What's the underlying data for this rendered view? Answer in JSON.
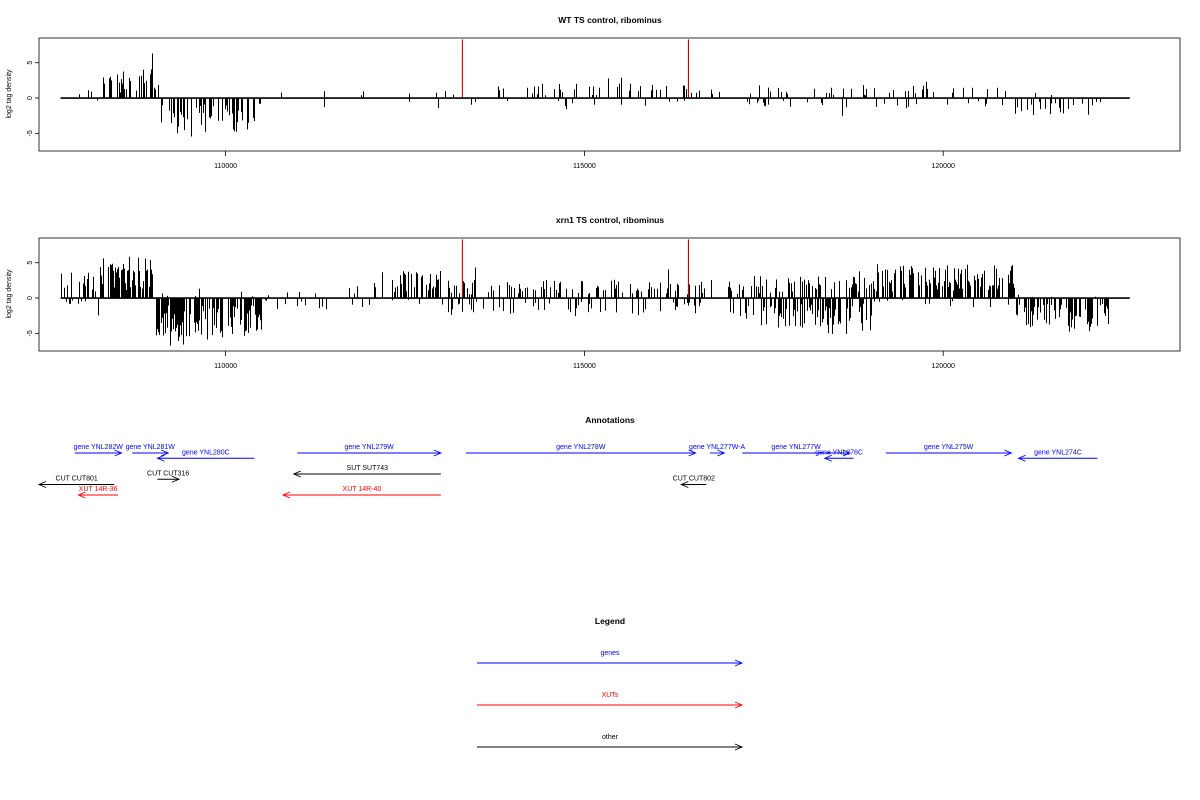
{
  "chart_data": [
    {
      "type": "bar",
      "title": "WT TS control, ribominus",
      "xlabel": "",
      "ylabel": "log2 tag density",
      "xlim": [
        107400,
        123300
      ],
      "ylim": [
        -7.5,
        8.5
      ],
      "x_ticks": [
        110000,
        115000,
        120000
      ],
      "x_tick_labels": [
        "110000",
        "115000",
        "120000"
      ],
      "y_ticks": [
        -5,
        0,
        5
      ],
      "y_tick_labels": [
        "-5",
        "0",
        "5"
      ],
      "baseline": {
        "x_start": 107700,
        "x_end": 122600,
        "y": 0,
        "color": "#000000"
      },
      "markers": [
        {
          "x": 113300,
          "y": 8.3,
          "color": "#cc0000"
        },
        {
          "x": 116450,
          "y": 8.3,
          "color": "#cc0000"
        }
      ],
      "signal": {
        "seed": 11,
        "color": "#000000",
        "segments": [
          {
            "x0": 107700,
            "x1": 108250,
            "strand": "plus",
            "mean": 0.8,
            "max": 2.2,
            "density": 0.06
          },
          {
            "x0": 107700,
            "x1": 108250,
            "strand": "minus",
            "mean": 0.5,
            "max": 1.5,
            "density": 0.03
          },
          {
            "x0": 108250,
            "x1": 109100,
            "strand": "plus",
            "mean": 2.2,
            "max": 8.0,
            "density": 0.45
          },
          {
            "x0": 109100,
            "x1": 110400,
            "strand": "minus",
            "mean": 2.6,
            "max": 5.6,
            "density": 0.45
          },
          {
            "x0": 109100,
            "x1": 110400,
            "strand": "plus",
            "mean": 0.4,
            "max": 1.0,
            "density": 0.03
          },
          {
            "x0": 110400,
            "x1": 113000,
            "strand": "plus",
            "mean": 0.7,
            "max": 1.8,
            "density": 0.04
          },
          {
            "x0": 110400,
            "x1": 113000,
            "strand": "minus",
            "mean": 0.8,
            "max": 2.4,
            "density": 0.05
          },
          {
            "x0": 113000,
            "x1": 116500,
            "strand": "plus",
            "mean": 1.1,
            "max": 3.0,
            "density": 0.14
          },
          {
            "x0": 113000,
            "x1": 116500,
            "strand": "minus",
            "mean": 0.7,
            "max": 1.6,
            "density": 0.06
          },
          {
            "x0": 116500,
            "x1": 117200,
            "strand": "plus",
            "mean": 0.8,
            "max": 2.0,
            "density": 0.05
          },
          {
            "x0": 117200,
            "x1": 121000,
            "strand": "plus",
            "mean": 1.0,
            "max": 3.0,
            "density": 0.12
          },
          {
            "x0": 117200,
            "x1": 121000,
            "strand": "minus",
            "mean": 0.9,
            "max": 2.6,
            "density": 0.09
          },
          {
            "x0": 121000,
            "x1": 122300,
            "strand": "minus",
            "mean": 1.4,
            "max": 3.5,
            "density": 0.3
          },
          {
            "x0": 121000,
            "x1": 122300,
            "strand": "plus",
            "mean": 0.4,
            "max": 1.0,
            "density": 0.03
          }
        ]
      }
    },
    {
      "type": "bar",
      "title": "xrn1 TS control, ribominus",
      "xlabel": "",
      "ylabel": "log2 tag density",
      "xlim": [
        107400,
        123300
      ],
      "ylim": [
        -7.5,
        8.5
      ],
      "x_ticks": [
        110000,
        115000,
        120000
      ],
      "x_tick_labels": [
        "110000",
        "115000",
        "120000"
      ],
      "y_ticks": [
        -5,
        0,
        5
      ],
      "y_tick_labels": [
        "-5",
        "0",
        "5"
      ],
      "baseline": {
        "x_start": 107700,
        "x_end": 122600,
        "y": 0,
        "color": "#000000"
      },
      "markers": [
        {
          "x": 113300,
          "y": 8.3,
          "color": "#cc0000"
        },
        {
          "x": 116450,
          "y": 8.3,
          "color": "#cc0000"
        }
      ],
      "signal": {
        "seed": 29,
        "color": "#000000",
        "segments": [
          {
            "x0": 107700,
            "x1": 108250,
            "strand": "plus",
            "mean": 2.0,
            "max": 4.5,
            "density": 0.4
          },
          {
            "x0": 107700,
            "x1": 108250,
            "strand": "minus",
            "mean": 0.9,
            "max": 3.0,
            "density": 0.1
          },
          {
            "x0": 108250,
            "x1": 109000,
            "strand": "plus",
            "mean": 3.2,
            "max": 8.3,
            "density": 0.75
          },
          {
            "x0": 109000,
            "x1": 110500,
            "strand": "minus",
            "mean": 3.0,
            "max": 6.8,
            "density": 0.65
          },
          {
            "x0": 109000,
            "x1": 110500,
            "strand": "plus",
            "mean": 0.6,
            "max": 1.5,
            "density": 0.05
          },
          {
            "x0": 110500,
            "x1": 112000,
            "strand": "plus",
            "mean": 0.8,
            "max": 2.0,
            "density": 0.12
          },
          {
            "x0": 110500,
            "x1": 112000,
            "strand": "minus",
            "mean": 0.9,
            "max": 2.5,
            "density": 0.1
          },
          {
            "x0": 112000,
            "x1": 113000,
            "strand": "plus",
            "mean": 2.2,
            "max": 4.0,
            "density": 0.4
          },
          {
            "x0": 112000,
            "x1": 113000,
            "strand": "minus",
            "mean": 0.6,
            "max": 1.5,
            "density": 0.05
          },
          {
            "x0": 113000,
            "x1": 116800,
            "strand": "plus",
            "mean": 1.4,
            "max": 4.6,
            "density": 0.3
          },
          {
            "x0": 113000,
            "x1": 116800,
            "strand": "minus",
            "mean": 1.3,
            "max": 2.8,
            "density": 0.22
          },
          {
            "x0": 116800,
            "x1": 117000,
            "strand": "plus",
            "mean": 0.8,
            "max": 2.0,
            "density": 0.08
          },
          {
            "x0": 117000,
            "x1": 119000,
            "strand": "plus",
            "mean": 1.7,
            "max": 3.8,
            "density": 0.42
          },
          {
            "x0": 117000,
            "x1": 119000,
            "strand": "minus",
            "mean": 2.2,
            "max": 5.5,
            "density": 0.5
          },
          {
            "x0": 119000,
            "x1": 121000,
            "strand": "plus",
            "mean": 2.6,
            "max": 5.0,
            "density": 0.6
          },
          {
            "x0": 119000,
            "x1": 121000,
            "strand": "minus",
            "mean": 0.7,
            "max": 1.6,
            "density": 0.06
          },
          {
            "x0": 121000,
            "x1": 122300,
            "strand": "minus",
            "mean": 2.3,
            "max": 4.8,
            "density": 0.6
          },
          {
            "x0": 121000,
            "x1": 122300,
            "strand": "plus",
            "mean": 0.4,
            "max": 1.0,
            "density": 0.03
          }
        ]
      }
    }
  ],
  "annotations": {
    "title": "Annotations",
    "features": [
      {
        "label": "gene YNL282W",
        "type": "gene",
        "start": 107900,
        "end": 108550,
        "row": 1
      },
      {
        "label": "gene YNL281W",
        "type": "gene",
        "start": 108700,
        "end": 109200,
        "row": 1
      },
      {
        "label": "gene YNL280C",
        "type": "gene",
        "start": 110400,
        "end": 109050,
        "row": 2
      },
      {
        "label": "gene YNL279W",
        "type": "gene",
        "start": 111000,
        "end": 113000,
        "row": 1
      },
      {
        "label": "gene YNL278W",
        "type": "gene",
        "start": 113350,
        "end": 116550,
        "row": 1
      },
      {
        "label": "gene YNL277W-A",
        "type": "gene",
        "start": 116750,
        "end": 116950,
        "row": 1
      },
      {
        "label": "gene YNL277W",
        "type": "gene",
        "start": 117200,
        "end": 118700,
        "row": 1
      },
      {
        "label": "gene YNL276C",
        "type": "gene",
        "start": 118750,
        "end": 118350,
        "row": 2
      },
      {
        "label": "gene YNL275W",
        "type": "gene",
        "start": 119200,
        "end": 120950,
        "row": 1
      },
      {
        "label": "gene YNL274C",
        "type": "gene",
        "start": 122150,
        "end": 121050,
        "row": 2
      },
      {
        "label": "SUT SUT743",
        "type": "other",
        "start": 113000,
        "end": 110950,
        "row": 5
      },
      {
        "label": "CUT CUT316",
        "type": "other",
        "start": 109050,
        "end": 109350,
        "row": 6
      },
      {
        "label": "CUT CUT801",
        "type": "other",
        "start": 108450,
        "end": 107400,
        "row": 7
      },
      {
        "label": "CUT CUT802",
        "type": "other",
        "start": 116700,
        "end": 116350,
        "row": 7
      },
      {
        "label": "XUT 14R-36",
        "type": "xut",
        "start": 108500,
        "end": 107950,
        "row": 9
      },
      {
        "label": "XUT 14R-40",
        "type": "xut",
        "start": 113000,
        "end": 110800,
        "row": 9
      }
    ]
  },
  "legend": {
    "title": "Legend",
    "items": [
      {
        "label": "genes",
        "type": "gene"
      },
      {
        "label": "XUTs",
        "type": "xut"
      },
      {
        "label": "other",
        "type": "other"
      }
    ]
  },
  "colors": {
    "gene": "#0000ff",
    "xut": "#ff0000",
    "other": "#000000",
    "marker": "#cc0000"
  }
}
